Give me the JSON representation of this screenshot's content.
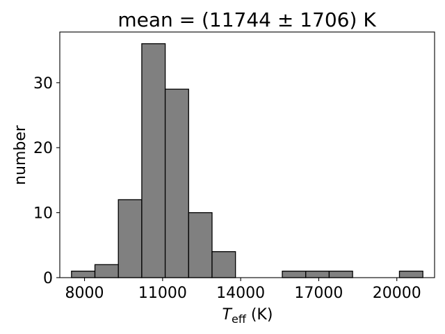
{
  "chart_data": {
    "type": "bar",
    "title": "mean = (11744 ± 1706) K",
    "xlabel": "T_eff (K)",
    "xlabel_parts": {
      "main": "T",
      "sub": "eff",
      "unit": " (K)"
    },
    "ylabel": "number",
    "bins": [
      {
        "x0": 7500,
        "x1": 8400,
        "count": 1
      },
      {
        "x0": 8400,
        "x1": 9300,
        "count": 2
      },
      {
        "x0": 9300,
        "x1": 10200,
        "count": 12
      },
      {
        "x0": 10200,
        "x1": 11100,
        "count": 36
      },
      {
        "x0": 11100,
        "x1": 12000,
        "count": 29
      },
      {
        "x0": 12000,
        "x1": 12900,
        "count": 10
      },
      {
        "x0": 12900,
        "x1": 13800,
        "count": 4
      },
      {
        "x0": 13800,
        "x1": 14700,
        "count": 0
      },
      {
        "x0": 14700,
        "x1": 15600,
        "count": 0
      },
      {
        "x0": 15600,
        "x1": 16500,
        "count": 1
      },
      {
        "x0": 16500,
        "x1": 17400,
        "count": 1
      },
      {
        "x0": 17400,
        "x1": 18300,
        "count": 1
      },
      {
        "x0": 18300,
        "x1": 19200,
        "count": 0
      },
      {
        "x0": 19200,
        "x1": 20100,
        "count": 0
      },
      {
        "x0": 20100,
        "x1": 21000,
        "count": 1
      }
    ],
    "xticks": [
      8000,
      11000,
      14000,
      17000,
      20000
    ],
    "yticks": [
      0,
      10,
      20,
      30
    ],
    "xlim": [
      7050,
      21450
    ],
    "ylim": [
      0,
      37.8
    ],
    "grid": false,
    "colors": {
      "bar_fill": "#808080",
      "bar_edge": "#000000"
    }
  }
}
